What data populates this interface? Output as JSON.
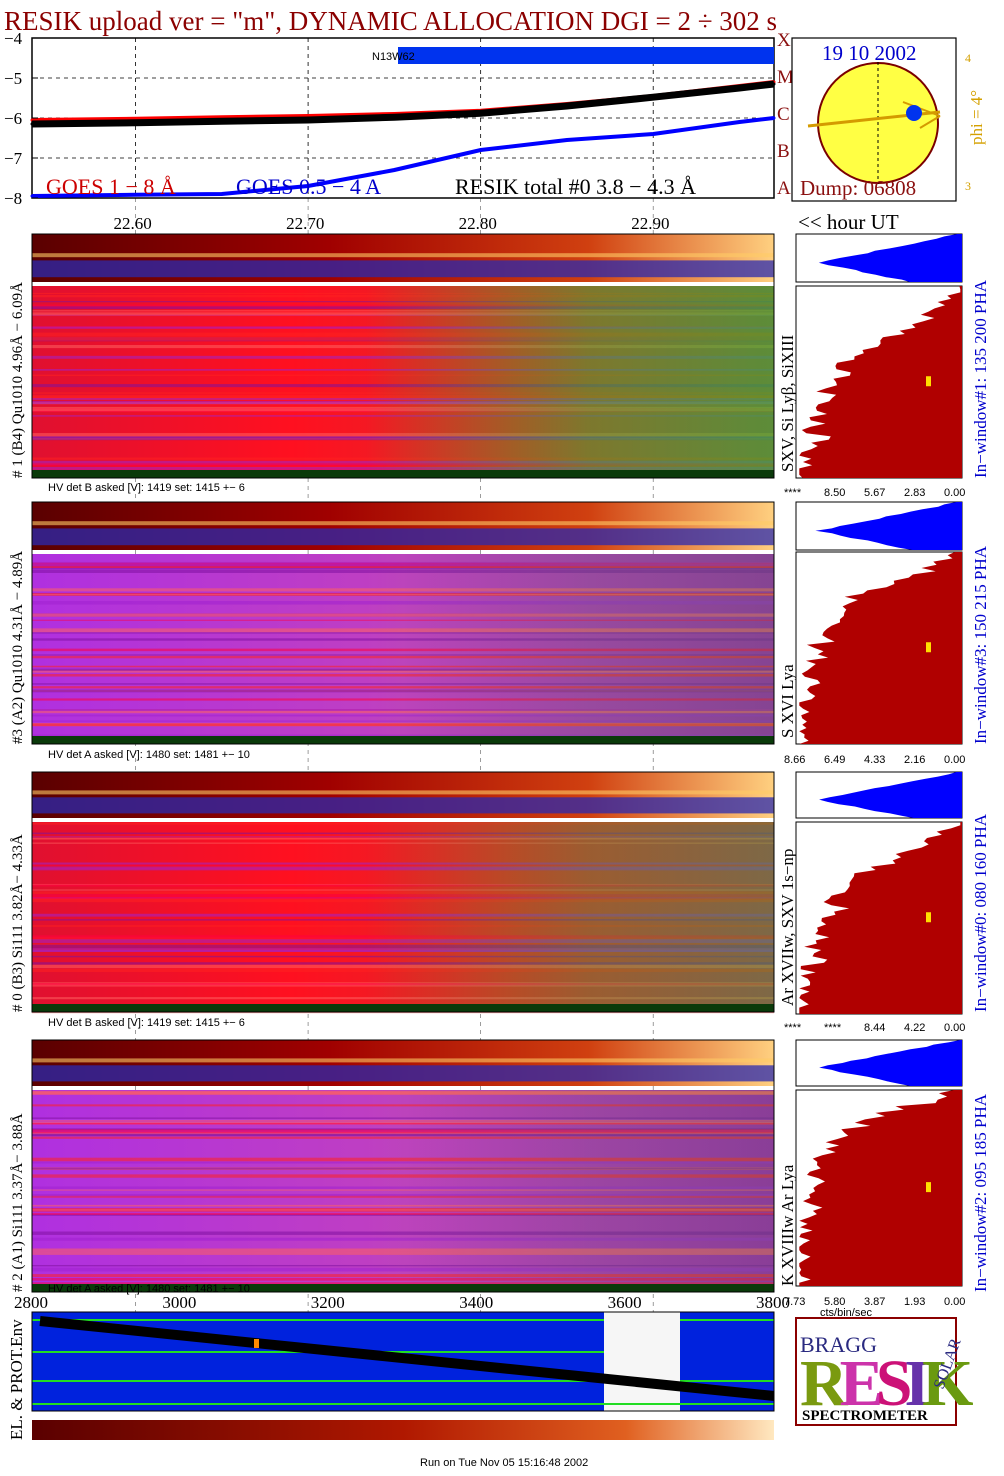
{
  "title": "RESIK upload ver = \"m\", DYNAMIC ALLOCATION  DGI =   2 ÷ 302 s",
  "top_panel": {
    "y_ticks": [
      "−4",
      "−5",
      "−6",
      "−7",
      "−8"
    ],
    "goes_classes": [
      "X",
      "M",
      "C",
      "B",
      "A"
    ],
    "bar_label": "N13W62",
    "legend_goes18": "GOES 1 − 8 Å",
    "legend_goes054": "GOES 0.5 − 4 A",
    "legend_resik": "RESIK total #0  3.8 − 4.3 Å",
    "date": "19 10 2002",
    "dump": "Dump: 06808",
    "phi": "phi = 4°",
    "phi_ticks": [
      "4",
      "3"
    ],
    "hour_ticks": [
      "22.60",
      "22.70",
      "22.80",
      "22.90"
    ],
    "hour_label": "<< hour UT"
  },
  "channels": [
    {
      "left_label": "# 1 (B4) Qu1010 4.96Å − 6.09Å",
      "mid_label": "SXV, Si Lyβ, SiXIII",
      "right_label": "In−window#1:  135 200 PHA",
      "hv": "HV det B asked [V]:  1419 set:  1415  +−    6",
      "pha_ticks": [
        "****",
        "8.50",
        "5.67",
        "2.83",
        "0.00"
      ]
    },
    {
      "left_label": "#3 (A2) Qu1010  4.31Å − 4.89Å",
      "mid_label": "S XVI Lya",
      "right_label": "In−window#3:  150 215 PHA",
      "hv": "HV det A asked [V]:  1480 set:  1481  +−   10",
      "pha_ticks": [
        "8.66",
        "6.49",
        "4.33",
        "2.16",
        "0.00"
      ]
    },
    {
      "left_label": "# 0 (B3) Si111  3.82Å− 4.33Å",
      "mid_label": "Ar XVIIw,  SXV 1s−np",
      "right_label": "In−window#0:  080 160 PHA",
      "hv": "HV det B asked [V]:  1419 set:  1415  +−    6",
      "pha_ticks": [
        "****",
        "****",
        "8.44",
        "4.22",
        "0.00"
      ]
    },
    {
      "left_label": "# 2 (A1) Si111  3.37Å− 3.88Å",
      "mid_label": "K XVIIIw  Ar Lya",
      "right_label": "In−window#2:  095 185 PHA",
      "hv": "HV det A asked [V]:  1480 set:  1481  +−   10",
      "pha_ticks": [
        "7.73",
        "5.80",
        "3.87",
        "1.93",
        "0.00"
      ]
    }
  ],
  "pha_unit": "cts/bin/sec",
  "bottom_panel": {
    "x_ticks": [
      "2800",
      "3000",
      "3200",
      "3400",
      "3600",
      "3800"
    ],
    "ylabel": "EL. & PROT.Env"
  },
  "logo": {
    "letters": "RESIK",
    "bragg": "BRAGG",
    "solar": "SOLAR",
    "caption": "SPECTROMETER"
  },
  "footer": "Run on Tue Nov 05 15:16:48 2002",
  "colors": {
    "title": "#8b0000",
    "goes18": "#ff0000",
    "goes054": "#0000ff",
    "resik": "#000000",
    "pha_fill": "#b00000",
    "pha_top": "#0000ff",
    "env_bg": "#0022dd",
    "green": "#22cc22"
  },
  "chart_data": [
    {
      "type": "line",
      "title": "RESIK upload ver = \"m\", DYNAMIC ALLOCATION  DGI =   2 ÷ 302 s",
      "x_unit": "hour UT",
      "xlim": [
        22.54,
        22.97
      ],
      "ylim": [
        -8,
        -4
      ],
      "series": [
        {
          "name": "GOES 1 − 8 Å",
          "x": [
            22.54,
            22.6,
            22.65,
            22.7,
            22.75,
            22.8,
            22.85,
            22.9,
            22.95,
            22.97
          ],
          "values": [
            -6.05,
            -6.02,
            -5.98,
            -5.95,
            -5.9,
            -5.82,
            -5.65,
            -5.45,
            -5.2,
            -5.1
          ]
        },
        {
          "name": "GOES 0.5 − 4 A",
          "x": [
            22.54,
            22.6,
            22.65,
            22.7,
            22.75,
            22.8,
            22.85,
            22.9,
            22.95,
            22.97
          ],
          "values": [
            -7.95,
            -7.92,
            -7.9,
            -7.7,
            -7.3,
            -6.8,
            -6.55,
            -6.4,
            -6.1,
            -6.0
          ]
        },
        {
          "name": "RESIK total #0  3.8 − 4.3 Å",
          "x": [
            22.54,
            22.6,
            22.65,
            22.7,
            22.75,
            22.8,
            22.85,
            22.9,
            22.95,
            22.97
          ],
          "values": [
            -6.15,
            -6.12,
            -6.08,
            -6.05,
            -5.98,
            -5.88,
            -5.7,
            -5.48,
            -5.25,
            -5.15
          ]
        }
      ]
    }
  ]
}
